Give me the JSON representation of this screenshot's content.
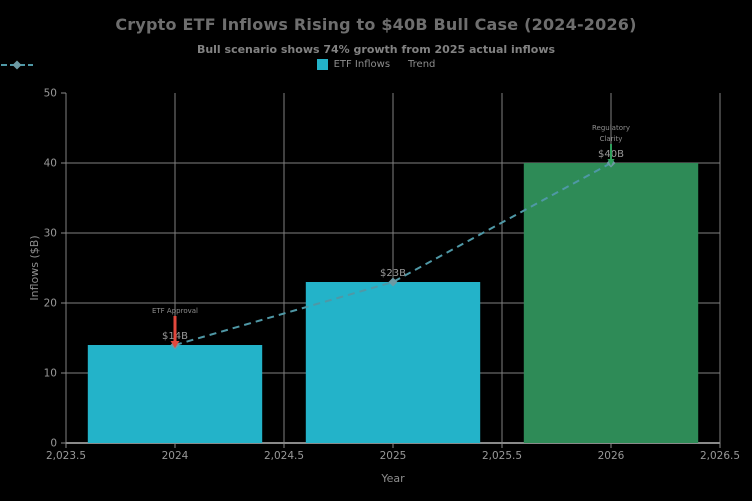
{
  "header": {
    "title": "Crypto ETF Inflows Rising to $40B Bull Case (2024-2026)",
    "subtitle": "Bull scenario shows 74% growth from 2025 actual inflows"
  },
  "legend": {
    "items": [
      {
        "label": "ETF Inflows",
        "swatch": "square",
        "color": "#23b3c9"
      },
      {
        "label": "Trend",
        "swatch": "dashed-line-diamond",
        "color": "#4f98a6",
        "marker_color": "#6d9aa4"
      }
    ]
  },
  "chart_data": {
    "type": "bar",
    "title": "Crypto ETF Inflows Rising to $40B Bull Case (2024-2026)",
    "subtitle": "Bull scenario shows 74% growth from 2025 actual inflows",
    "xlabel": "Year",
    "ylabel": "Inflows ($B)",
    "x": [
      2024,
      2025,
      2026
    ],
    "series": [
      {
        "name": "ETF Inflows",
        "type": "bar",
        "values": [
          14,
          23,
          40
        ],
        "labels": [
          "$14B",
          "$23B",
          "$40B"
        ],
        "colors": [
          "#23b3c9",
          "#23b3c9",
          "#2e8b57"
        ],
        "bar_width": 0.8
      },
      {
        "name": "Trend",
        "type": "line",
        "style": "dashed",
        "marker": "diamond",
        "values": [
          14,
          23,
          40
        ],
        "color": "#4f98a6",
        "marker_color": "#6d9aa4"
      }
    ],
    "xlim": [
      2023.5,
      2026.5
    ],
    "ylim": [
      0,
      50
    ],
    "x_ticks": [
      {
        "value": 2023.5,
        "label": "2,023.5"
      },
      {
        "value": 2024,
        "label": "2024"
      },
      {
        "value": 2024.5,
        "label": "2,024.5"
      },
      {
        "value": 2025,
        "label": "2025"
      },
      {
        "value": 2025.5,
        "label": "2,025.5"
      },
      {
        "value": 2026,
        "label": "2026"
      },
      {
        "value": 2026.5,
        "label": "2,026.5"
      }
    ],
    "y_ticks": [
      {
        "value": 0,
        "label": "0",
        "gridline": false
      },
      {
        "value": 10,
        "label": "10",
        "gridline": true
      },
      {
        "value": 20,
        "label": "20",
        "gridline": true
      },
      {
        "value": 30,
        "label": "30",
        "gridline": true
      },
      {
        "value": 40,
        "label": "40",
        "gridline": true
      },
      {
        "value": 50,
        "label": "50",
        "gridline": false
      }
    ],
    "grid": true,
    "legend_position": "top-center",
    "annotations": [
      {
        "lines": [
          "ETF Approval"
        ],
        "x": 2024,
        "y": 14,
        "arrow_color": "#e2483d",
        "arrow_len": 32,
        "arrow_width": 3
      },
      {
        "lines": [
          "Regulatory",
          "Clarity"
        ],
        "x": 2026,
        "y": 40,
        "arrow_color": "#2e9e5b",
        "arrow_len": 22,
        "arrow_width": 2
      }
    ],
    "colors": {
      "background": "#000000",
      "grid": "#7f7f7f",
      "axis": "#8a8a8a",
      "tick_label": "#989898",
      "axis_title": "#8d8d8d",
      "value_label": "#9a9a9a",
      "annotation_text": "#8d8d8d"
    }
  }
}
